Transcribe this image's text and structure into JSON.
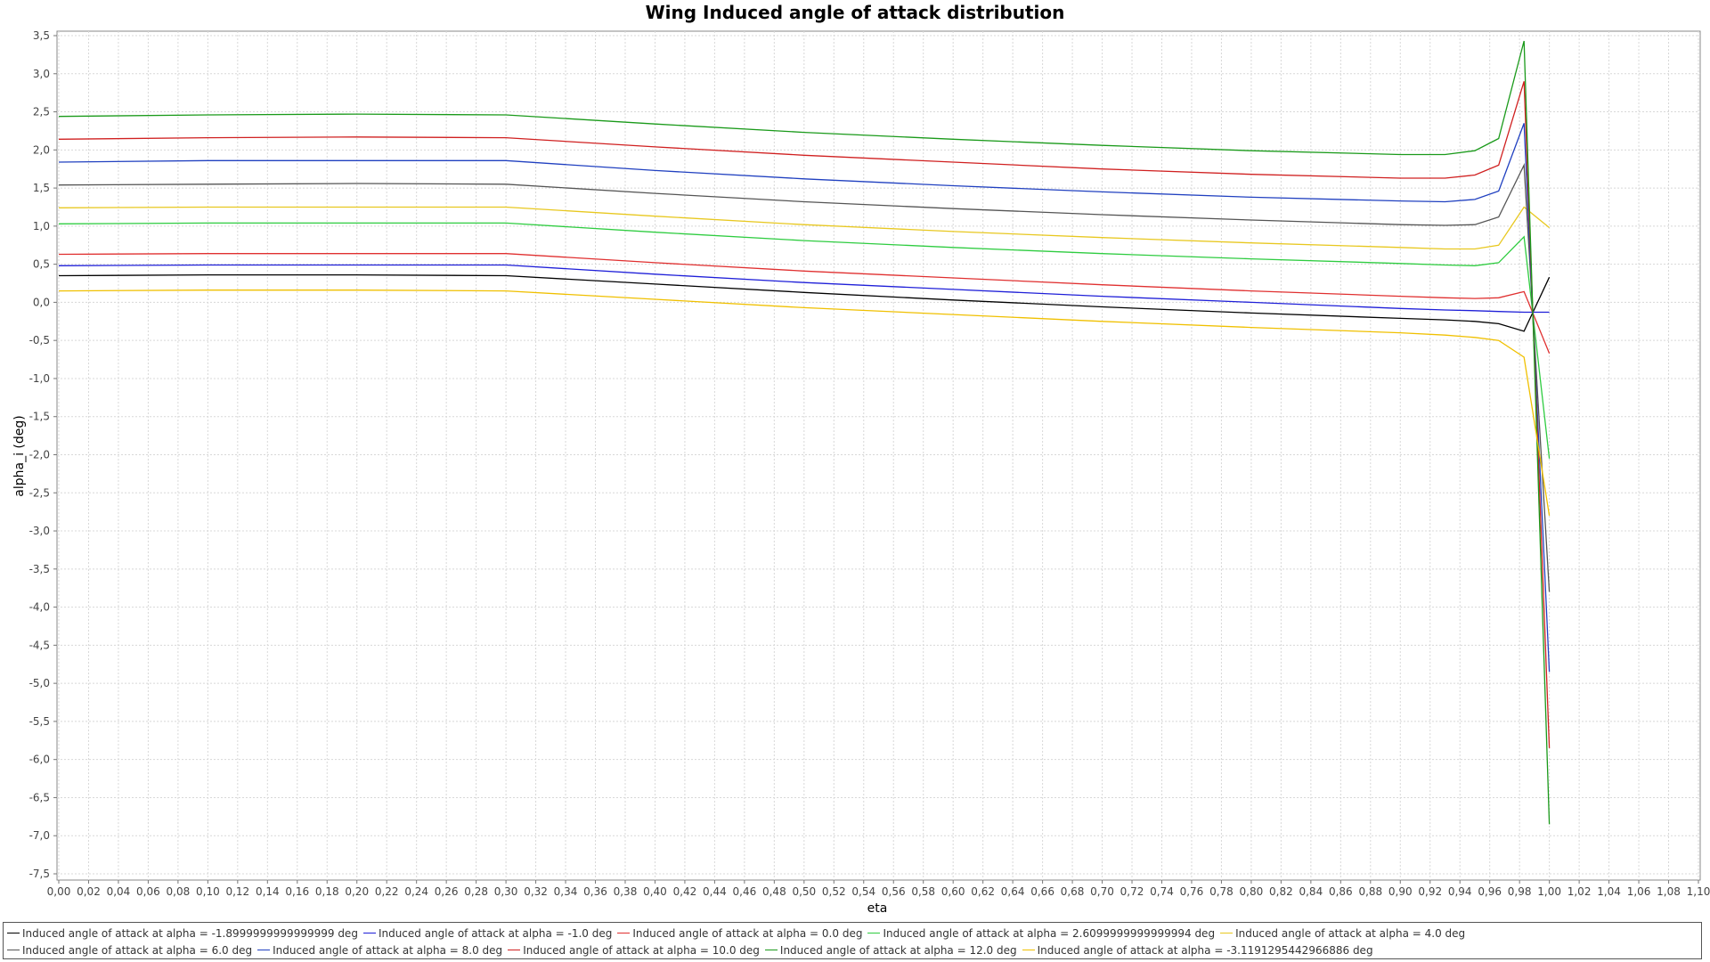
{
  "chart_data": {
    "type": "line",
    "title": "Wing Induced angle of attack distribution",
    "xlabel": "eta",
    "ylabel": "alpha_i (deg)",
    "xlim": [
      0.0,
      1.1
    ],
    "ylim": [
      -7.5,
      3.5
    ],
    "grid": true,
    "legend_position": "bottom",
    "x_ticks": [
      "0,00",
      "0,02",
      "0,04",
      "0,06",
      "0,08",
      "0,10",
      "0,12",
      "0,14",
      "0,16",
      "0,18",
      "0,20",
      "0,22",
      "0,24",
      "0,26",
      "0,28",
      "0,30",
      "0,32",
      "0,34",
      "0,36",
      "0,38",
      "0,40",
      "0,42",
      "0,44",
      "0,46",
      "0,48",
      "0,50",
      "0,52",
      "0,54",
      "0,56",
      "0,58",
      "0,60",
      "0,62",
      "0,64",
      "0,66",
      "0,68",
      "0,70",
      "0,72",
      "0,74",
      "0,76",
      "0,78",
      "0,80",
      "0,82",
      "0,84",
      "0,86",
      "0,88",
      "0,90",
      "0,92",
      "0,94",
      "0,96",
      "0,98",
      "1,00",
      "1,02",
      "1,04",
      "1,06",
      "1,08",
      "1,10"
    ],
    "y_ticks": [
      "3,5",
      "3,0",
      "2,5",
      "2,0",
      "1,5",
      "1,0",
      "0,5",
      "0,0",
      "-0,5",
      "-1,0",
      "-1,5",
      "-2,0",
      "-2,5",
      "-3,0",
      "-3,5",
      "-4,0",
      "-4,5",
      "-5,0",
      "-5,5",
      "-6,0",
      "-6,5",
      "-7,0",
      "-7,5"
    ],
    "x": [
      0.0,
      0.1,
      0.2,
      0.3,
      0.4,
      0.5,
      0.6,
      0.7,
      0.8,
      0.9,
      0.93,
      0.95,
      0.966,
      0.983,
      1.0
    ],
    "series": [
      {
        "name": "Induced angle of attack at alpha = -1.8999999999999999 deg",
        "color": "#000000",
        "values": [
          0.35,
          0.36,
          0.36,
          0.35,
          0.24,
          0.13,
          0.03,
          -0.06,
          -0.14,
          -0.21,
          -0.23,
          -0.25,
          -0.28,
          -0.38,
          0.33
        ]
      },
      {
        "name": "Induced angle of attack at alpha = -1.0 deg",
        "color": "#1f1fd8",
        "values": [
          0.48,
          0.49,
          0.49,
          0.49,
          0.37,
          0.26,
          0.17,
          0.08,
          0.0,
          -0.08,
          -0.1,
          -0.11,
          -0.12,
          -0.13,
          -0.13
        ]
      },
      {
        "name": "Induced angle of attack at alpha = 0.0 deg",
        "color": "#e03030",
        "values": [
          0.63,
          0.64,
          0.64,
          0.64,
          0.52,
          0.41,
          0.32,
          0.23,
          0.15,
          0.08,
          0.06,
          0.05,
          0.06,
          0.14,
          -0.67
        ]
      },
      {
        "name": "Induced angle of attack at alpha = 2.6099999999999994 deg",
        "color": "#2ecc40",
        "values": [
          1.03,
          1.04,
          1.04,
          1.04,
          0.92,
          0.81,
          0.72,
          0.64,
          0.57,
          0.51,
          0.49,
          0.48,
          0.52,
          0.86,
          -2.05
        ]
      },
      {
        "name": "Induced angle of attack at alpha = 4.0 deg",
        "color": "#e8c820",
        "values": [
          1.24,
          1.25,
          1.25,
          1.25,
          1.13,
          1.02,
          0.93,
          0.85,
          0.78,
          0.72,
          0.7,
          0.7,
          0.75,
          1.25,
          0.98
        ]
      },
      {
        "name": "Induced angle of attack at alpha = 6.0 deg",
        "color": "#555555",
        "values": [
          1.54,
          1.55,
          1.56,
          1.55,
          1.43,
          1.32,
          1.23,
          1.15,
          1.08,
          1.02,
          1.01,
          1.02,
          1.12,
          1.8,
          -3.8
        ]
      },
      {
        "name": "Induced angle of attack at alpha = 8.0 deg",
        "color": "#2040c0",
        "values": [
          1.84,
          1.86,
          1.86,
          1.86,
          1.73,
          1.62,
          1.53,
          1.45,
          1.38,
          1.33,
          1.32,
          1.35,
          1.46,
          2.35,
          -4.85
        ]
      },
      {
        "name": "Induced angle of attack at alpha = 10.0 deg",
        "color": "#d02020",
        "values": [
          2.14,
          2.16,
          2.17,
          2.16,
          2.04,
          1.93,
          1.84,
          1.75,
          1.68,
          1.63,
          1.63,
          1.67,
          1.8,
          2.9,
          -5.85
        ]
      },
      {
        "name": "Induced angle of attack at alpha = 12.0 deg",
        "color": "#1a9a1a",
        "values": [
          2.44,
          2.46,
          2.47,
          2.46,
          2.34,
          2.23,
          2.14,
          2.06,
          1.99,
          1.94,
          1.94,
          1.99,
          2.15,
          3.43,
          -6.85
        ]
      },
      {
        "name": "Induced angle of attack at alpha = -3.1191295442966886 deg",
        "color": "#f0c000",
        "values": [
          0.15,
          0.16,
          0.16,
          0.15,
          0.04,
          -0.07,
          -0.16,
          -0.25,
          -0.33,
          -0.4,
          -0.43,
          -0.46,
          -0.5,
          -0.72,
          -2.8
        ]
      }
    ]
  }
}
